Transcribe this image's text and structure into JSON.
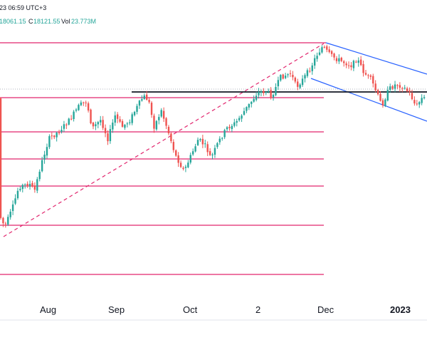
{
  "header": {
    "time_fragment": "23 06:59 UTC+3",
    "ohlc_fragment": "18061.15",
    "close_label": "C",
    "close_value": "18121.55",
    "vol_label": "Vol",
    "vol_value": "23.773M"
  },
  "colors": {
    "up_candle": "#26a69a",
    "down_candle": "#ef5350",
    "fib_level": "#e2266e",
    "trend_dashed": "#e2266e",
    "channel": "#2962ff",
    "horizontal_level": "#131722",
    "axis_text": "#131722"
  },
  "chart_data": {
    "type": "candlestick",
    "x_ticks": [
      "Aug",
      "Sep",
      "Oct",
      "2",
      "Dec",
      "2023"
    ],
    "x_ticks_bold": [
      "2023"
    ],
    "grid": false,
    "legend": "none",
    "annotations": [
      "horizontal fibonacci levels",
      "dashed trend line",
      "descending parallel channel",
      "horizontal support/resistance level"
    ]
  }
}
